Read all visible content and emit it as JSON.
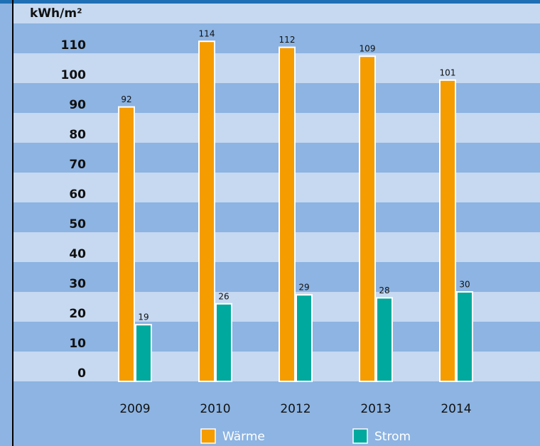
{
  "chart_data": {
    "type": "bar",
    "y_axis_label": "kWh/m²",
    "categories": [
      "2009",
      "2010",
      "2012",
      "2013",
      "2014"
    ],
    "series": [
      {
        "name": "Wärme",
        "color": "#f59c00",
        "values": [
          92,
          114,
          112,
          109,
          101
        ]
      },
      {
        "name": "Strom",
        "color": "#00a99d",
        "values": [
          19,
          26,
          29,
          28,
          30
        ]
      }
    ],
    "ylim": [
      0,
      120
    ],
    "yticks": [
      0,
      10,
      20,
      30,
      40,
      50,
      60,
      70,
      80,
      90,
      100,
      110
    ],
    "stripe_colors": [
      "#c6d9f1",
      "#8db4e2"
    ]
  }
}
